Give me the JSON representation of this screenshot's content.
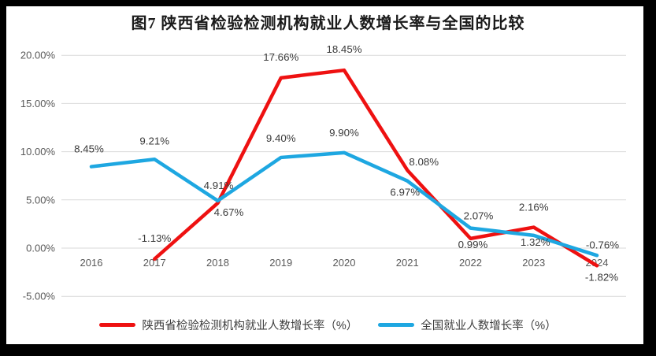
{
  "chart_data": {
    "type": "line",
    "title": "图7 陕西省检验检测机构就业人数增长率与全国的比较",
    "categories": [
      "2016",
      "2017",
      "2018",
      "2019",
      "2020",
      "2021",
      "2022",
      "2023",
      "2024"
    ],
    "series": [
      {
        "name": "陕西省检验检测机构就业人数增长率（%）",
        "color": "#ee1111",
        "values": [
          null,
          -1.13,
          4.67,
          17.66,
          18.45,
          8.08,
          0.99,
          2.16,
          -1.82
        ],
        "labels": [
          null,
          "-1.13%",
          "4.67%",
          "17.66%",
          "18.45%",
          "8.08%",
          "0.99%",
          "2.16%",
          "-1.82%"
        ]
      },
      {
        "name": "全国就业人数增长率（%）",
        "color": "#1ea7e1",
        "values": [
          8.45,
          9.21,
          4.91,
          9.4,
          9.9,
          6.97,
          2.07,
          1.32,
          -0.76
        ],
        "labels": [
          "8.45%",
          "9.21%",
          "4.91%",
          "9.40%",
          "9.90%",
          "6.97%",
          "2.07%",
          "1.32%",
          "-0.76%"
        ]
      }
    ],
    "yticks": [
      20,
      15,
      10,
      5,
      0,
      -5
    ],
    "ytick_labels": [
      "20.00%",
      "15.00%",
      "10.00%",
      "5.00%",
      "0.00%",
      "-5.00%"
    ],
    "ylim": [
      -5,
      20
    ],
    "grid": true,
    "legend_position": "bottom",
    "grid_color": "#d9d9d9",
    "axis_label_color": "#595959",
    "data_label_color": "#3a3a3a"
  }
}
